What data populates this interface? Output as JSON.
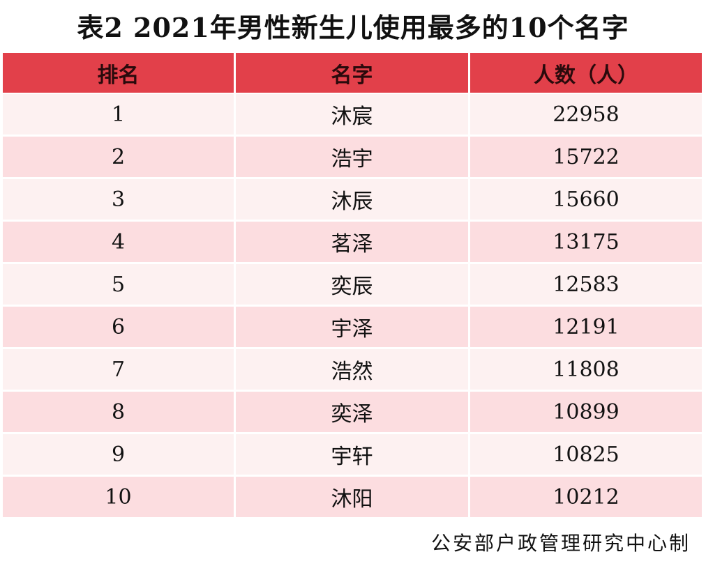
{
  "title": "表2  2021年男性新生儿使用最多的10个名字",
  "headers": {
    "rank": "排名",
    "name": "名字",
    "count": "人数（人）"
  },
  "rows": [
    {
      "rank": "1",
      "name": "沐宸",
      "count": "22958"
    },
    {
      "rank": "2",
      "name": "浩宇",
      "count": "15722"
    },
    {
      "rank": "3",
      "name": "沐辰",
      "count": "15660"
    },
    {
      "rank": "4",
      "name": "茗泽",
      "count": "13175"
    },
    {
      "rank": "5",
      "name": "奕辰",
      "count": "12583"
    },
    {
      "rank": "6",
      "name": "宇泽",
      "count": "12191"
    },
    {
      "rank": "7",
      "name": "浩然",
      "count": "11808"
    },
    {
      "rank": "8",
      "name": "奕泽",
      "count": "10899"
    },
    {
      "rank": "9",
      "name": "宇轩",
      "count": "10825"
    },
    {
      "rank": "10",
      "name": "沐阳",
      "count": "10212"
    }
  ],
  "footer": "公安部户政管理研究中心制",
  "colors": {
    "header": "#e2404a",
    "row_light": "#fdf1f1",
    "row_dark": "#fcdde0"
  }
}
